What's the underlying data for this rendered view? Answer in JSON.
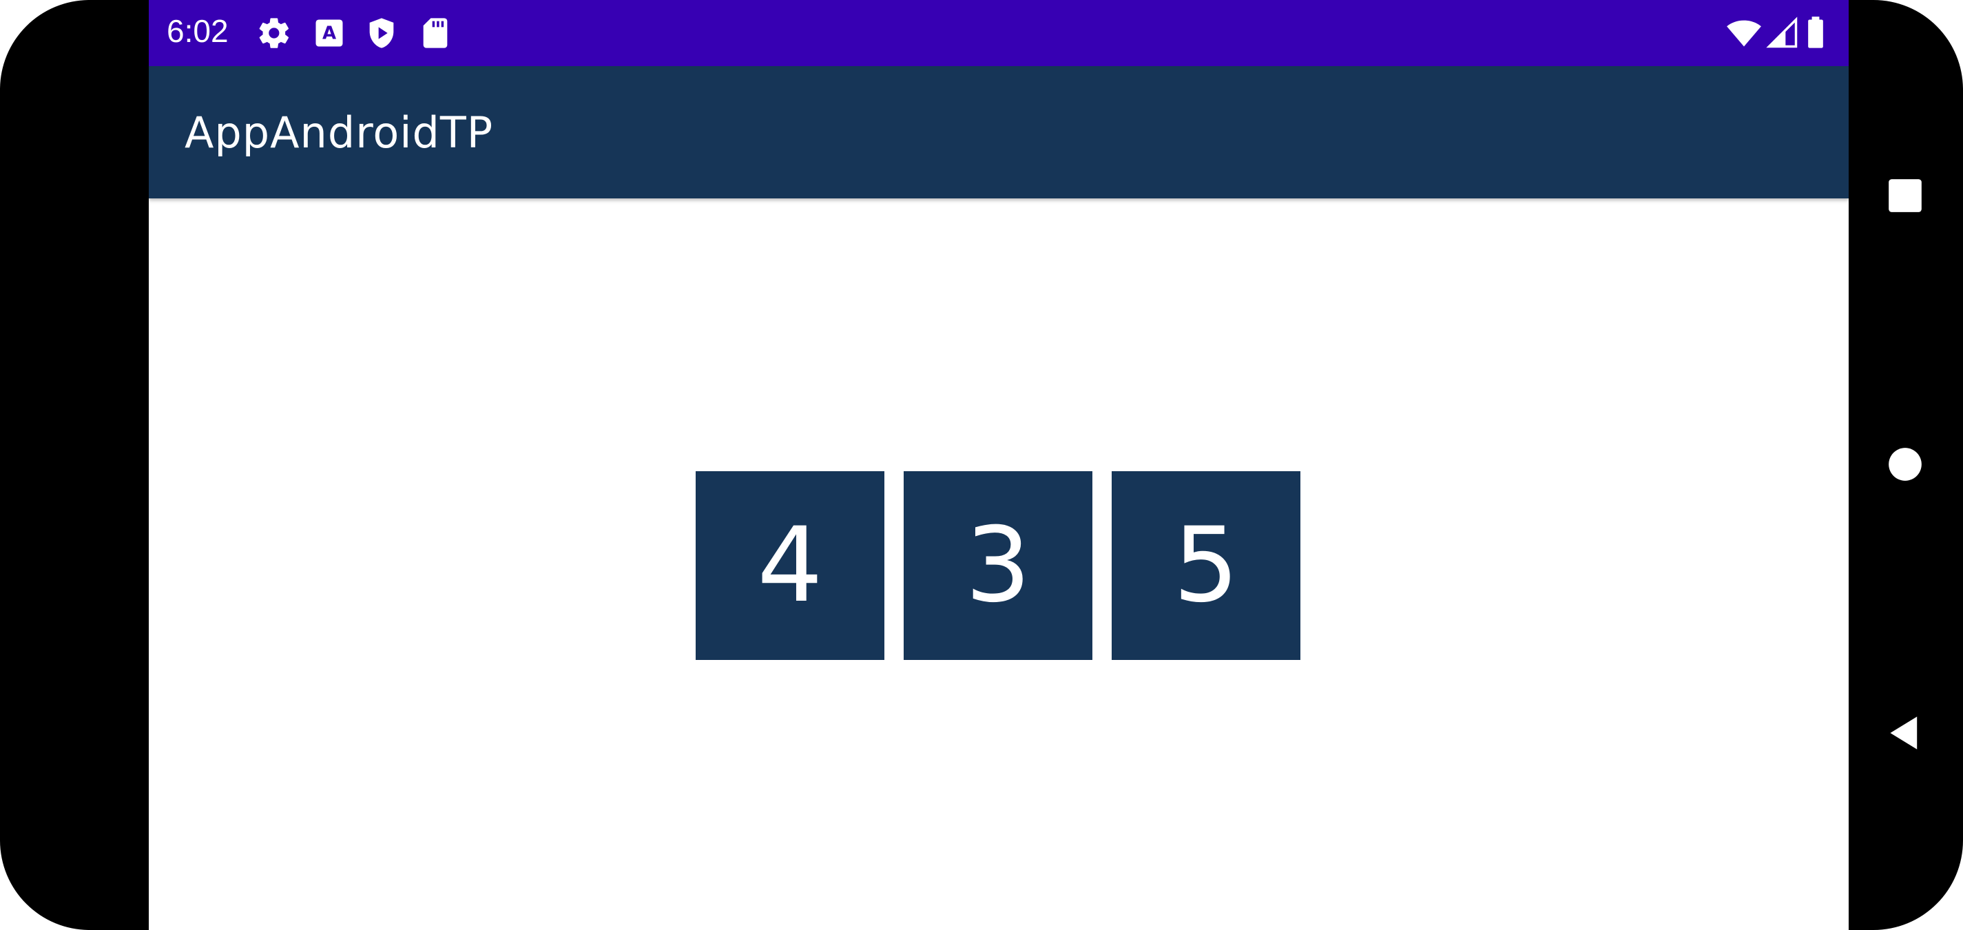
{
  "status_bar": {
    "time": "6:02",
    "left_icons": [
      "settings-icon",
      "text-a-icon",
      "shield-play-icon",
      "sd-card-icon"
    ],
    "right_icons": [
      "wifi-icon",
      "signal-icon",
      "battery-icon"
    ],
    "background": "#3700B3"
  },
  "app_bar": {
    "title": "AppAndroidTP",
    "background": "#163557"
  },
  "tiles": [
    {
      "label": "4"
    },
    {
      "label": "3"
    },
    {
      "label": "5"
    }
  ],
  "tile_color": "#163557",
  "nav_bar": {
    "buttons": [
      "recents-button",
      "home-button",
      "back-button"
    ]
  }
}
